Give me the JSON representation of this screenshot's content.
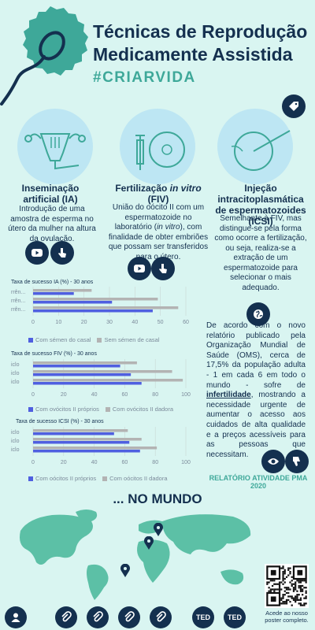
{
  "header": {
    "title_line1": "Técnicas de Reprodução",
    "title_line2": "Medicamente Assistida",
    "hashtag": "#CRIARVIDA"
  },
  "techniques": [
    {
      "title": "Inseminação artificial (IA)",
      "description": "Introdução de uma amostra de esperma no útero da mulher na altura da ovulação."
    },
    {
      "title_plain": "Fertilização ",
      "title_italic": "in vitro",
      "title_suffix": " (FIV)",
      "description_a": "União do oócito II com um espermatozoide no laboratório (",
      "description_italic": "in vitro",
      "description_b": "), com finalidade de obter embriões que possam ser transferidos para o útero."
    },
    {
      "title": "Injeção intracitoplasmática de espermatozoides (ICSI)",
      "description": "Semelhante à FIV, mas distingue-se pela forma como ocorre a fertilização, ou seja, realiza-se a extração de um espermatozoide para selecionar o mais adequado."
    }
  ],
  "chart_data": [
    {
      "type": "bar",
      "orientation": "horizontal",
      "title": "Taxa de sucesso IA (%) - 30 anos",
      "categories": [
        "rrên...",
        "rrên...",
        "rrên..."
      ],
      "series": [
        {
          "name": "Com sémen do casal",
          "values": [
            16,
            31,
            47
          ],
          "color": "#4f5fe0"
        },
        {
          "name": "Sem sémen de casal",
          "values": [
            23,
            49,
            57
          ],
          "color": "#b3b3b3"
        }
      ],
      "xlim": [
        0,
        60
      ],
      "xticks": [
        0,
        10,
        20,
        30,
        40,
        50,
        60
      ]
    },
    {
      "type": "bar",
      "orientation": "horizontal",
      "title": "Taxa de sucesso FIV (%) - 30 anos",
      "categories": [
        "iclo",
        "iclo",
        "iclo"
      ],
      "series": [
        {
          "name": "Com ovócitos II próprios",
          "values": [
            57,
            64,
            71
          ],
          "color": "#4f5fe0"
        },
        {
          "name": "Com ovócitos II dadora",
          "values": [
            68,
            91,
            98
          ],
          "color": "#b3b3b3"
        }
      ],
      "xlim": [
        0,
        100
      ],
      "xticks": [
        0,
        20,
        40,
        60,
        80,
        100
      ]
    },
    {
      "type": "bar",
      "orientation": "horizontal",
      "title": "Taxa de sucesso ICSI (%) - 30 anos",
      "categories": [
        "iclo",
        "iclo",
        "iclo"
      ],
      "series": [
        {
          "name": "Com oócitos II próprios",
          "values": [
            53,
            63,
            70
          ],
          "color": "#4f5fe0"
        },
        {
          "name": "Com oócitos II dadora",
          "values": [
            62,
            71,
            81
          ],
          "color": "#b3b3b3"
        }
      ],
      "xlim": [
        0,
        100
      ],
      "xticks": [
        0,
        20,
        40,
        60,
        80,
        100
      ]
    }
  ],
  "info": {
    "text_before": "De acordo com o novo relatório publicado pela Organização Mundial de Saúde (OMS), cerca de 17,5% da população adulta - 1 em cada 6 em todo o mundo - sofre de ",
    "link_word": "infertilidade",
    "text_after": ", mostrando a necessidade urgente de aumentar o acesso aos cuidados de alta qualidade e a preços acessíveis para as pessoas que necessitam.",
    "report_link": "RELATÓRIO ATIVIDADE PMA 2020"
  },
  "world": {
    "title": "... NO MUNDO"
  },
  "qr": {
    "caption": "Acede ao nosso poster completo."
  },
  "footer": {
    "ted_label": "TED"
  },
  "colors": {
    "navy": "#14304f",
    "teal": "#3ea899",
    "bg": "#d9f5f1",
    "map": "#5cc0a6",
    "bar_blue": "#4f5fe0",
    "bar_grey": "#b3b3b3"
  }
}
